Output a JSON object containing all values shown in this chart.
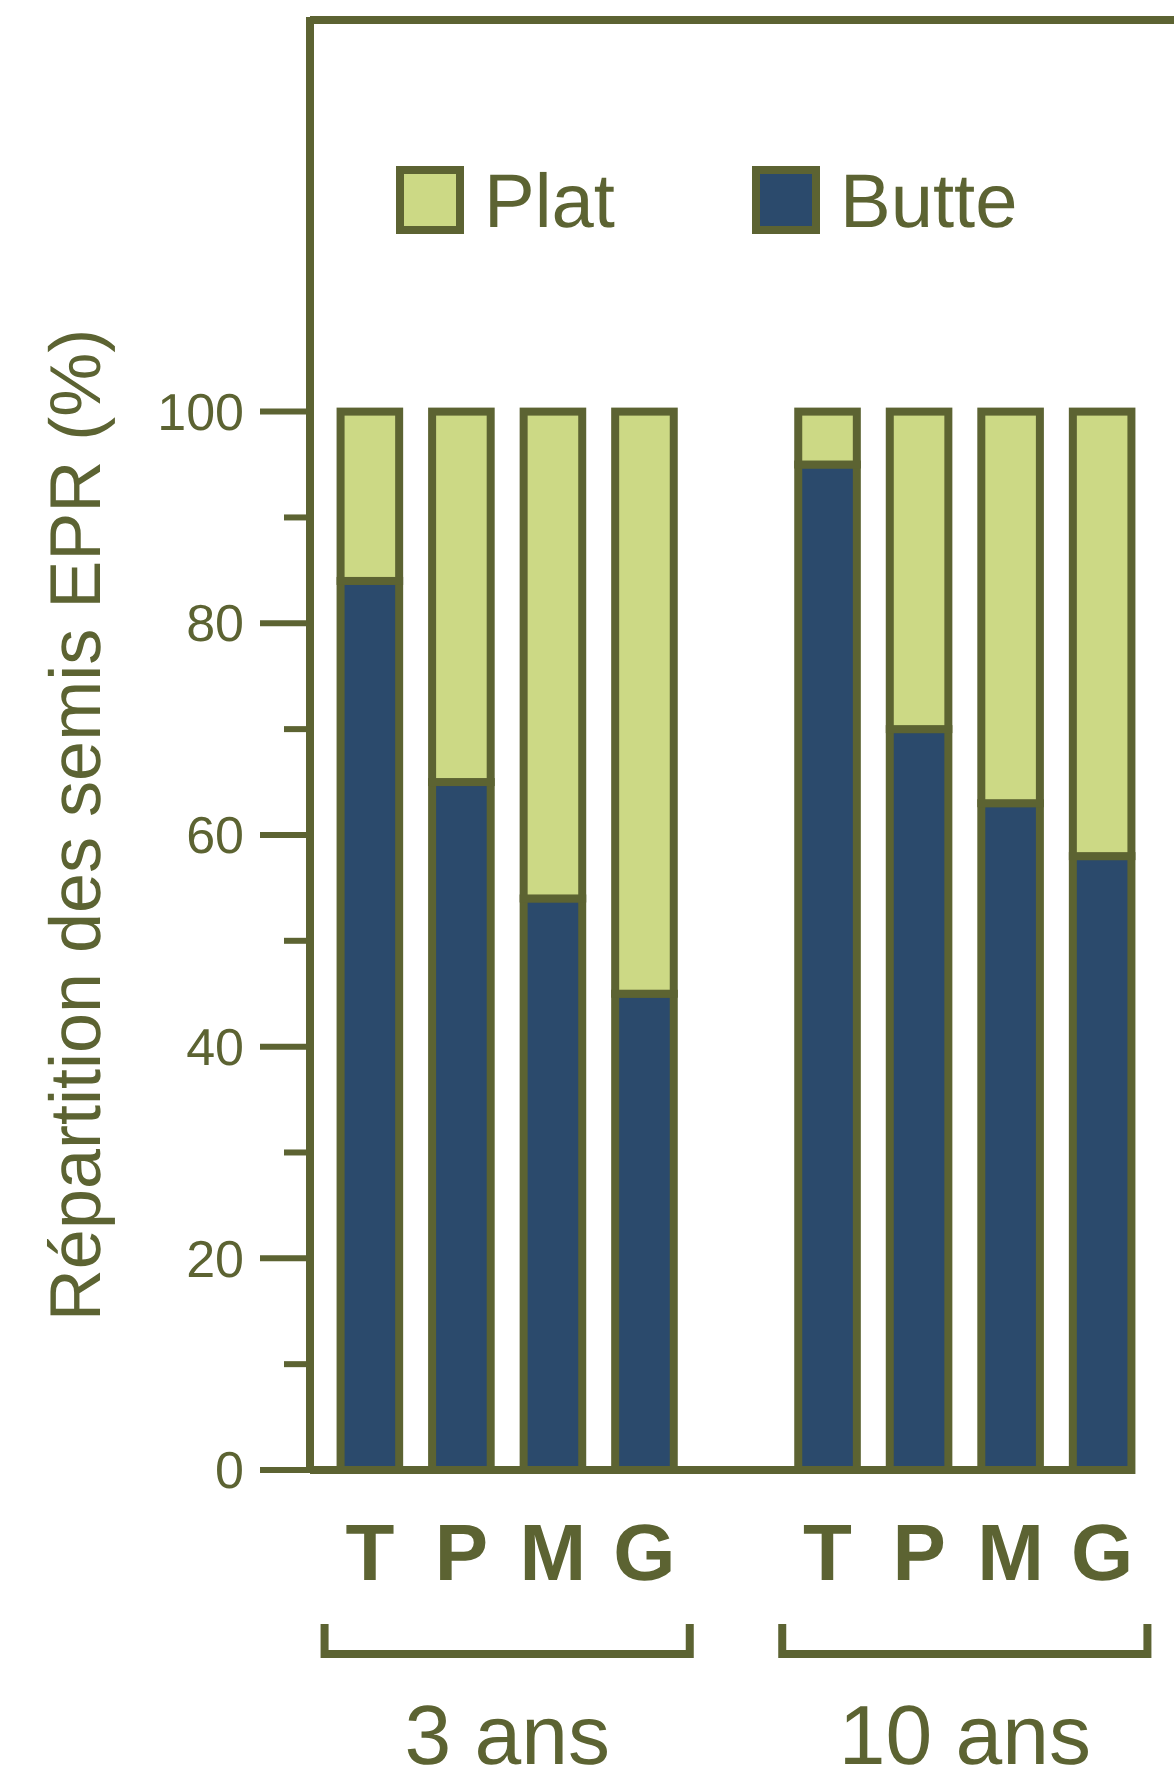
{
  "chart_data": {
    "type": "bar",
    "stacked": true,
    "ylabel": "Répartition des semis EPR (%)",
    "categories": [
      "T",
      "P",
      "M",
      "G",
      null,
      "T",
      "P",
      "M",
      "G"
    ],
    "series": [
      {
        "name": "Butte",
        "color": "#2b4a6c",
        "values": [
          84,
          65,
          54,
          45,
          null,
          95,
          70,
          63,
          58
        ]
      },
      {
        "name": "Plat",
        "color": "#ccd985",
        "values": [
          16,
          35,
          46,
          55,
          null,
          5,
          30,
          37,
          42
        ]
      }
    ],
    "ylim": [
      0,
      137
    ],
    "yticks": [
      0,
      {
        "value": 10,
        "label": null
      },
      20,
      {
        "value": 30,
        "label": null
      },
      40,
      {
        "value": 50,
        "label": null
      },
      60,
      {
        "value": 70,
        "label": null
      },
      80,
      {
        "value": 90,
        "label": null
      },
      100
    ],
    "legend": "top",
    "annotations": [
      "3 ans",
      "10 ans"
    ]
  }
}
